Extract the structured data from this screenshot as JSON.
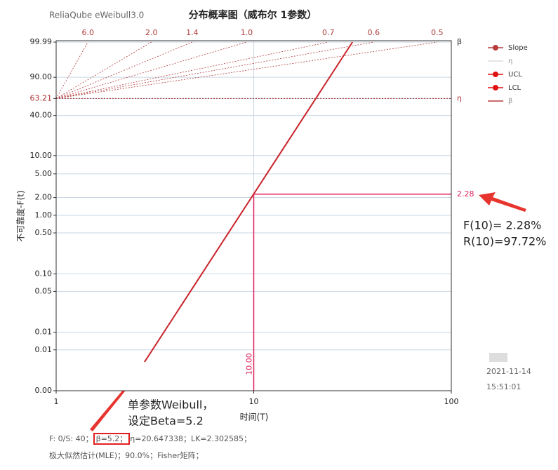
{
  "header": {
    "app": "ReliaQube eWeibull3.0"
  },
  "chart_data": {
    "type": "weibull",
    "title": "分布概率图（威布尔 1参数）",
    "y_label": "不可靠度-F(t)",
    "x_label": "时间(T)",
    "xscale": "log",
    "yscale": "weibull",
    "xlim": [
      1,
      100
    ],
    "xticks": [
      1,
      10,
      100
    ],
    "ylim": [
      0.001,
      99.99
    ],
    "yticks": [
      {
        "value": 99.99,
        "label": "99.99"
      },
      {
        "value": 90,
        "label": "90.00"
      },
      {
        "value": 63.21,
        "label": "63.21"
      },
      {
        "value": 40,
        "label": "40.00"
      },
      {
        "value": 10,
        "label": "10.00"
      },
      {
        "value": 5,
        "label": "5.00"
      },
      {
        "value": 2,
        "label": "2.00"
      },
      {
        "value": 1,
        "label": "1.00"
      },
      {
        "value": 0.5,
        "label": "0.50"
      },
      {
        "value": 0.1,
        "label": "0.10"
      },
      {
        "value": 0.05,
        "label": "0.05"
      },
      {
        "value": 0.01,
        "label": "0.01"
      },
      {
        "value": 0.005,
        "label": "0.01"
      },
      {
        "value": 0.001,
        "label": "0.00"
      }
    ],
    "grid": true,
    "fit_line": {
      "color": "#c8242b",
      "x": [
        2.8,
        31.6
      ],
      "values": [
        0.0031,
        99.99
      ]
    },
    "eta_line": {
      "value": 63.21,
      "label": "η",
      "color": "#a83232"
    },
    "beta_lines": {
      "label": "β",
      "color": "#b03a3a",
      "values": [
        {
          "value": 6,
          "label": "6.0"
        },
        {
          "value": 2,
          "label": "2.0"
        },
        1.4,
        {
          "value": 1,
          "label": "1.0"
        },
        0.7,
        0.6,
        0.5
      ]
    },
    "marker": {
      "color": "#e0245e",
      "x": {
        "value": 10,
        "label": "10.00"
      },
      "y": 2.28
    },
    "legend": [
      {
        "name": "Slope",
        "color": "#b83a3a",
        "marker": true
      },
      {
        "name": "η",
        "color": "#dddddd",
        "marker": false
      },
      {
        "name": "UCL",
        "color": "#e01010",
        "marker": true
      },
      {
        "name": "LCL",
        "color": "#e01010",
        "marker": true
      },
      {
        "name": "β",
        "color": "#b83a3a",
        "marker": false
      }
    ]
  },
  "callouts": {
    "f10": "F(10)=  2.28%",
    "r10": "R(10)=97.72%",
    "model_1": "单参数Weibull，",
    "model_2": "设定Beta=5.2"
  },
  "timestamp": {
    "date": "2021-11-14",
    "time": "15:51:01"
  },
  "footer": {
    "part_1": "F: 0/S: 40；",
    "part_2": "β=5.2；",
    "part_3": "η=20.647338；LK=2.302585；",
    "line_2": "极大似然估计(MLE)；90.0%；Fisher矩阵；"
  }
}
